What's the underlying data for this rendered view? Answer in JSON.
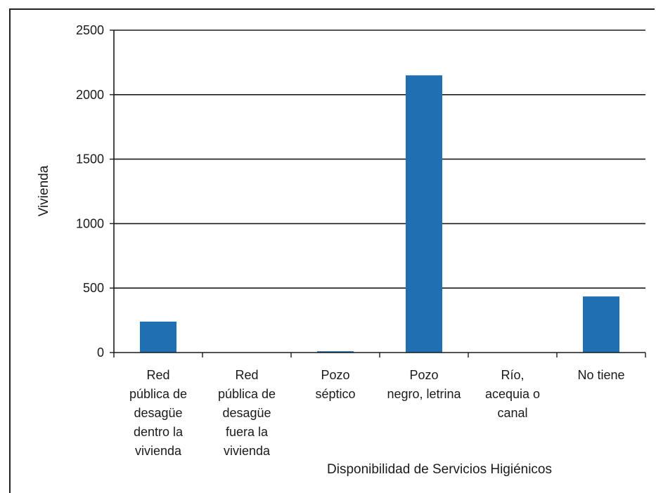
{
  "chart_data": {
    "type": "bar",
    "title": "",
    "xlabel": "Disponibilidad de Servicios Higiénicos",
    "ylabel": "Vivienda",
    "ylim": [
      0,
      2500
    ],
    "yticks": [
      0,
      500,
      1000,
      1500,
      2000,
      2500
    ],
    "grid": true,
    "categories": [
      [
        "Red",
        "pública de",
        "desagüe",
        "dentro la",
        "vivienda"
      ],
      [
        "Red",
        "pública de",
        "desagüe",
        "fuera la",
        "vivienda"
      ],
      [
        "Pozo",
        "séptico"
      ],
      [
        "Pozo",
        "negro, letrina"
      ],
      [
        "Río,",
        "acequia o",
        "canal"
      ],
      [
        "No tiene"
      ]
    ],
    "values": [
      240,
      0,
      10,
      2150,
      0,
      435
    ],
    "colors": {
      "bar": "#1f6fb2",
      "grid": "#1a1a1a"
    }
  }
}
